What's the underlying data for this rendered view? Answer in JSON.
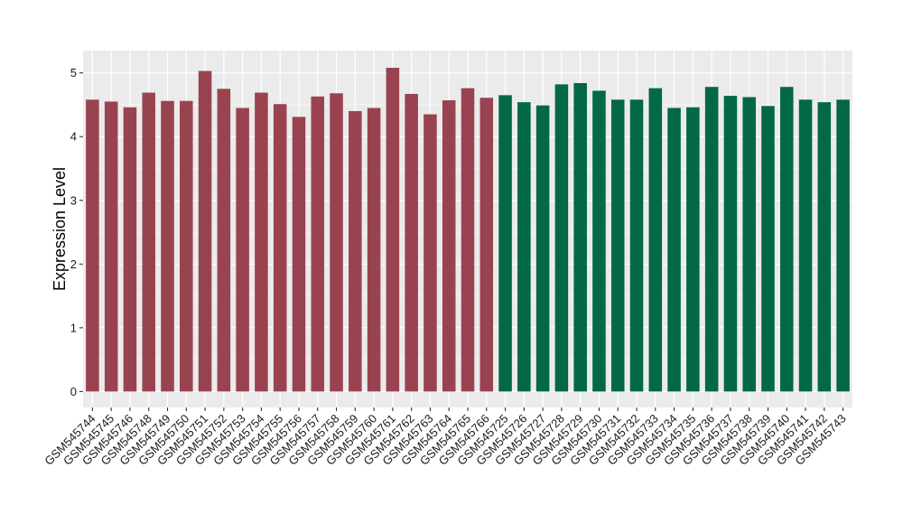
{
  "chart_data": {
    "type": "bar",
    "title": "",
    "xlabel": "",
    "ylabel": "Expression Level",
    "ylim": [
      -0.25,
      5.35
    ],
    "yticks": [
      0,
      1,
      2,
      3,
      4,
      5
    ],
    "grid": true,
    "legend": "none",
    "colors": {
      "panel_bg": "#ebebeb",
      "grid": "#ffffff",
      "group1": "#9a4350",
      "group2": "#036846"
    },
    "categories": [
      "GSM545744",
      "GSM545745",
      "GSM545746",
      "GSM545748",
      "GSM545749",
      "GSM545750",
      "GSM545751",
      "GSM545752",
      "GSM545753",
      "GSM545754",
      "GSM545755",
      "GSM545756",
      "GSM545757",
      "GSM545758",
      "GSM545759",
      "GSM545760",
      "GSM545761",
      "GSM545762",
      "GSM545763",
      "GSM545764",
      "GSM545765",
      "GSM545766",
      "GSM545725",
      "GSM545726",
      "GSM545727",
      "GSM545728",
      "GSM545729",
      "GSM545730",
      "GSM545731",
      "GSM545732",
      "GSM545733",
      "GSM545734",
      "GSM545735",
      "GSM545736",
      "GSM545737",
      "GSM545738",
      "GSM545739",
      "GSM545740",
      "GSM545741",
      "GSM545742",
      "GSM545743"
    ],
    "values": [
      4.58,
      4.55,
      4.46,
      4.69,
      4.56,
      4.56,
      5.03,
      4.75,
      4.45,
      4.69,
      4.51,
      4.31,
      4.63,
      4.68,
      4.4,
      4.45,
      5.08,
      4.67,
      4.35,
      4.57,
      4.76,
      4.61,
      4.65,
      4.54,
      4.49,
      4.82,
      4.84,
      4.72,
      4.58,
      4.58,
      4.76,
      4.45,
      4.46,
      4.78,
      4.64,
      4.62,
      4.48,
      4.78,
      4.58,
      4.54,
      4.58
    ],
    "groups": [
      1,
      1,
      1,
      1,
      1,
      1,
      1,
      1,
      1,
      1,
      1,
      1,
      1,
      1,
      1,
      1,
      1,
      1,
      1,
      1,
      1,
      1,
      2,
      2,
      2,
      2,
      2,
      2,
      2,
      2,
      2,
      2,
      2,
      2,
      2,
      2,
      2,
      2,
      2,
      2,
      2
    ]
  }
}
